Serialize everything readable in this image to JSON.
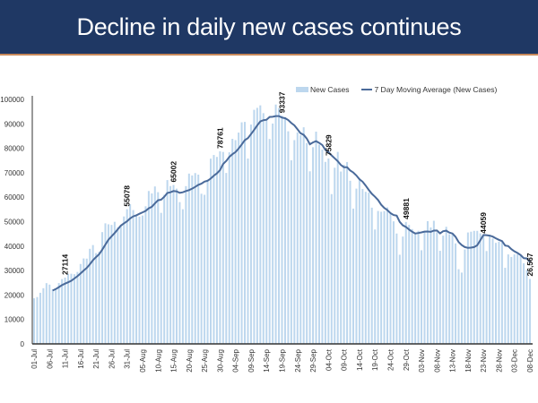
{
  "header": {
    "title": "Decline in daily new cases continues"
  },
  "chart_data": {
    "type": "bar+line",
    "title": "Decline in daily new cases continues",
    "legend": [
      "New Cases",
      "7 Day Moving Average (New Cases)"
    ],
    "legend_position": "top-right",
    "start_date": "01-Jul",
    "x_tick_labels": [
      "01-Jul",
      "06-Jul",
      "11-Jul",
      "16-Jul",
      "21-Jul",
      "26-Jul",
      "31-Jul",
      "05-Aug",
      "10-Aug",
      "15-Aug",
      "20-Aug",
      "25-Aug",
      "30-Aug",
      "04-Sep",
      "09-Sep",
      "14-Sep",
      "19-Sep",
      "24-Sep",
      "29-Sep",
      "04-Oct",
      "09-Oct",
      "14-Oct",
      "19-Oct",
      "24-Oct",
      "29-Oct",
      "03-Nov",
      "08-Nov",
      "13-Nov",
      "18-Nov",
      "23-Nov",
      "28-Nov",
      "03-Dec",
      "08-Dec"
    ],
    "y_tick_labels": [
      "0",
      "10000",
      "20000",
      "30000",
      "40000",
      "50000",
      "60000",
      "70000",
      "80000",
      "90000",
      "100000"
    ],
    "ylim": [
      0,
      100000
    ],
    "grid": false,
    "colors": {
      "bars": "#bdd7ee",
      "line": "#4a6a9a",
      "header": "#1f3864"
    },
    "series": [
      {
        "name": "New Cases",
        "type": "bar",
        "values": [
          18653,
          19148,
          20903,
          22771,
          24850,
          24248,
          22252,
          22752,
          24879,
          26506,
          27114,
          28637,
          28701,
          28498,
          29429,
          32695,
          34956,
          34884,
          38902,
          40425,
          37148,
          37724,
          45720,
          49310,
          48916,
          48661,
          49931,
          47704,
          48513,
          52123,
          55078,
          57118,
          54735,
          52972,
          52050,
          52509,
          56282,
          62538,
          61537,
          64399,
          62064,
          53601,
          60963,
          66999,
          64553,
          65002,
          63490,
          57981,
          55079,
          64531,
          69652,
          68898,
          69878,
          69239,
          61408,
          60975,
          67151,
          75760,
          77266,
          76472,
          78761,
          78512,
          69921,
          78357,
          83883,
          83341,
          86432,
          90632,
          90802,
          75809,
          89706,
          95735,
          96551,
          97570,
          94372,
          92071,
          83809,
          90123,
          97894,
          96424,
          93337,
          92605,
          86961,
          75083,
          83347,
          86508,
          85362,
          88600,
          82170,
          70589,
          80472,
          86821,
          81484,
          79476,
          74442,
          75829,
          61267,
          72049,
          78524,
          70496,
          73272,
          74383,
          66732,
          55342,
          63509,
          67708,
          63371,
          62212,
          61871,
          55722,
          46790,
          54366,
          54044,
          54350,
          55838,
          53370,
          50129,
          45148,
          36469,
          43893,
          49881,
          48648,
          46963,
          45231,
          46254,
          38310,
          46253,
          50210,
          47638,
          50357,
          45674,
          38073,
          44281,
          47905,
          44879,
          44878,
          41100,
          30548,
          29164,
          38617,
          45576,
          45882,
          46232,
          46232,
          45209,
          44059,
          37975,
          44376,
          43082,
          41322,
          41810,
          41810,
          31118,
          36604,
          35551,
          36595,
          36652,
          36011,
          32981,
          30254,
          26567
        ]
      },
      {
        "name": "7 Day Moving Average (New Cases)",
        "type": "line",
        "derived_from": "New Cases",
        "window": 7
      }
    ],
    "annotations": [
      {
        "date": "11-Jul",
        "text": "27114"
      },
      {
        "date": "31-Jul",
        "text": "55078"
      },
      {
        "date": "15-Aug",
        "text": "65002"
      },
      {
        "date": "30-Aug",
        "text": "78761"
      },
      {
        "date": "19-Sep",
        "text": "93337"
      },
      {
        "date": "04-Oct",
        "text": "75829"
      },
      {
        "date": "29-Oct",
        "text": "49881"
      },
      {
        "date": "23-Nov",
        "text": "44059"
      },
      {
        "date": "08-Dec",
        "text": "26,567"
      }
    ]
  }
}
